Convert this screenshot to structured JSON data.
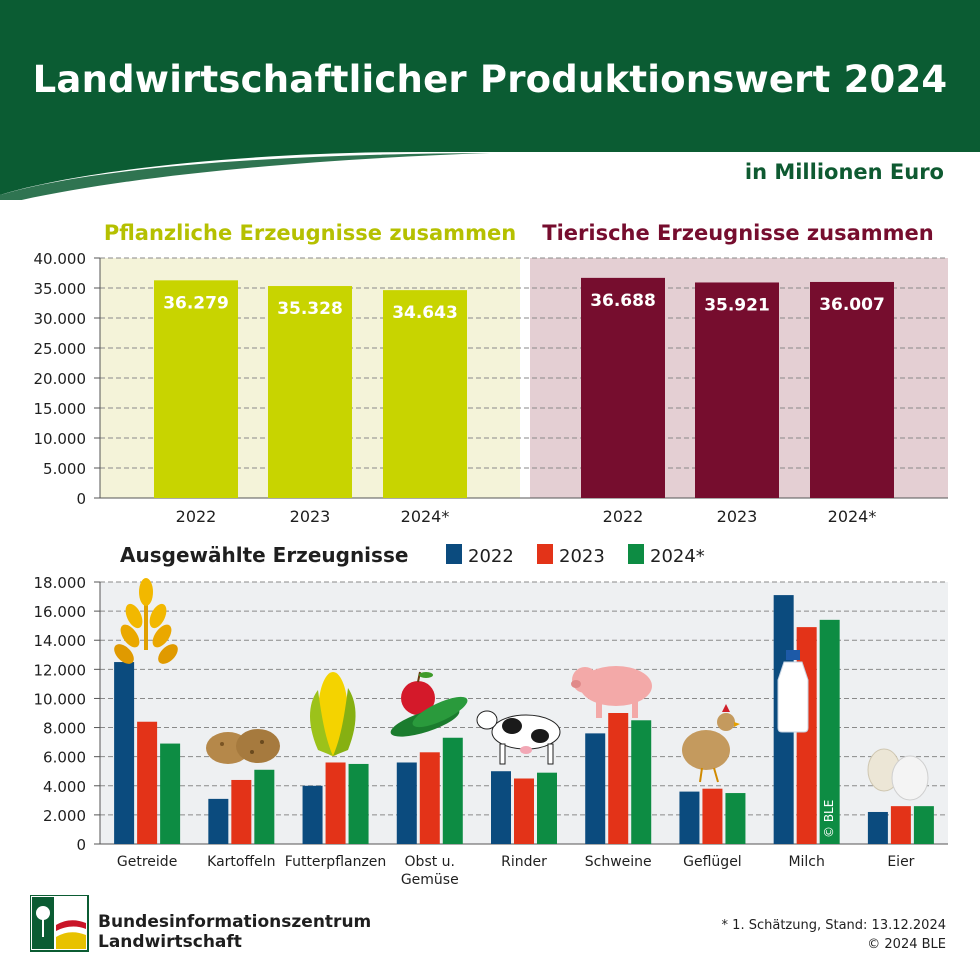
{
  "title": "Landwirtschaftlicher Produktionswert 2024",
  "unit": "in Millionen Euro",
  "colors": {
    "header": "#0b5c33",
    "plant": "#c8d400",
    "plant_bg": "#f4f3d9",
    "animal": "#760d2e",
    "animal_bg": "#e4cfd3",
    "y2022": "#0b4b7e",
    "y2023": "#e33318",
    "y2024": "#0d8c43"
  },
  "chart_data": [
    {
      "type": "bar",
      "title": "Pflanzliche Erzeugnisse zusammen",
      "categories": [
        "2022",
        "2023",
        "2024*"
      ],
      "values": [
        36279,
        35328,
        34643
      ],
      "labels": [
        "36.279",
        "35.328",
        "34.643"
      ],
      "ylim": [
        0,
        40000
      ],
      "yticks": [
        "0",
        "5.000",
        "10.000",
        "15.000",
        "20.000",
        "25.000",
        "30.000",
        "35.000",
        "40.000"
      ],
      "grid": true
    },
    {
      "type": "bar",
      "title": "Tierische Erzeugnisse zusammen",
      "categories": [
        "2022",
        "2023",
        "2024*"
      ],
      "values": [
        36688,
        35921,
        36007
      ],
      "labels": [
        "36.688",
        "35.921",
        "36.007"
      ],
      "ylim": [
        0,
        40000
      ],
      "grid": true
    },
    {
      "type": "bar",
      "title": "Ausgewählte Erzeugnisse",
      "categories": [
        "Getreide",
        "Kartoffeln",
        "Futterpflanzen",
        "Obst u. Gemüse",
        "Rinder",
        "Schweine",
        "Geflügel",
        "Milch",
        "Eier"
      ],
      "series": [
        {
          "name": "2022",
          "values": [
            12500,
            3100,
            4000,
            5600,
            5000,
            7600,
            3600,
            17100,
            2200
          ]
        },
        {
          "name": "2023",
          "values": [
            8400,
            4400,
            5600,
            6300,
            4500,
            9000,
            3800,
            14900,
            2600
          ]
        },
        {
          "name": "2024*",
          "values": [
            6900,
            5100,
            5500,
            7300,
            4900,
            8500,
            3500,
            15400,
            2600
          ]
        }
      ],
      "ylim": [
        0,
        18000
      ],
      "yticks": [
        "0",
        "2.000",
        "4.000",
        "6.000",
        "8.000",
        "10.000",
        "12.000",
        "14.000",
        "16.000",
        "18.000"
      ],
      "grid": true,
      "legend_position": "top"
    }
  ],
  "copyright_watermark": "© BLE",
  "footer": {
    "org_line1": "Bundesinformationszentrum",
    "org_line2": "Landwirtschaft",
    "note_line1": "* 1. Schätzung, Stand: 13.12.2024",
    "note_line2": "© 2024 BLE"
  }
}
